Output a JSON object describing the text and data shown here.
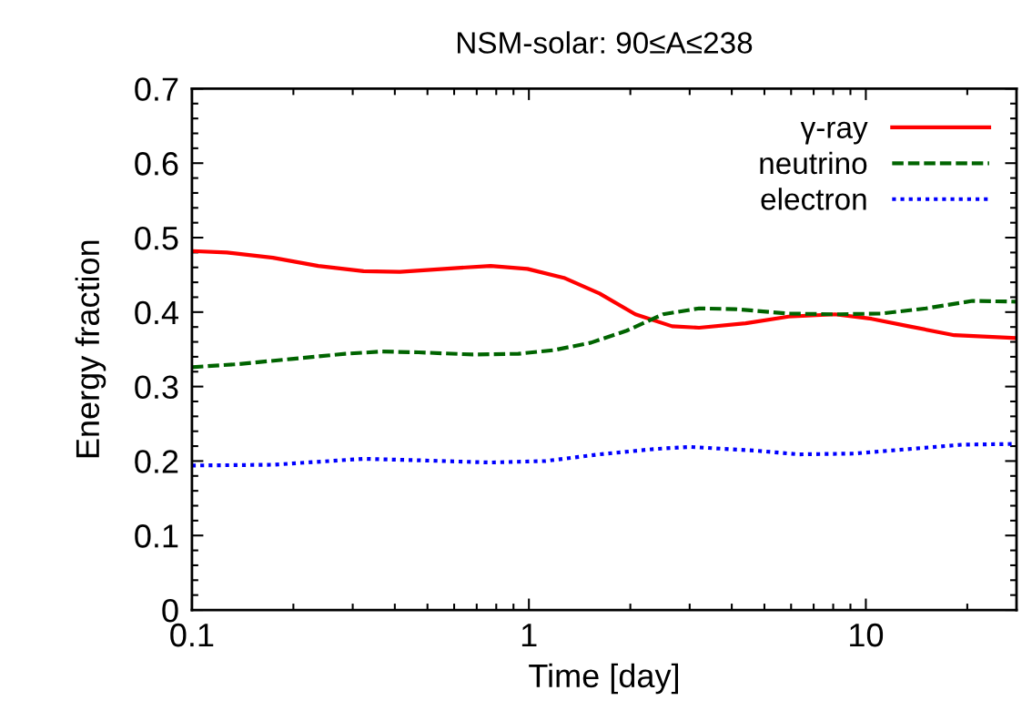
{
  "chart_data": {
    "type": "line",
    "title": "NSM-solar: 90≤A≤238",
    "xlabel": "Time [day]",
    "ylabel": "Energy fraction",
    "log": "x",
    "xlim": [
      0.1,
      28
    ],
    "xticks": [
      0.1,
      1,
      10
    ],
    "ylim": [
      0,
      0.7
    ],
    "yticks": [
      0,
      0.1,
      0.2,
      0.3,
      0.4,
      0.5,
      0.6,
      0.7
    ],
    "grid": false,
    "legend": "top right",
    "marker": "none",
    "series": [
      {
        "name": "γ-ray",
        "color": "#ff0000",
        "line_style": "solid",
        "x": [
          0.1,
          0.127,
          0.174,
          0.237,
          0.323,
          0.414,
          0.6,
          0.77,
          0.99,
          1.27,
          1.62,
          2.07,
          2.66,
          3.2,
          4.4,
          5.9,
          8.1,
          10.4,
          13.4,
          18.3,
          28
        ],
        "values": [
          0.482,
          0.48,
          0.473,
          0.462,
          0.455,
          0.454,
          0.459,
          0.462,
          0.458,
          0.446,
          0.425,
          0.397,
          0.381,
          0.379,
          0.385,
          0.394,
          0.397,
          0.391,
          0.381,
          0.369,
          0.365
        ]
      },
      {
        "name": "neutrino",
        "color": "#006400",
        "line_style": "dashed",
        "x": [
          0.1,
          0.136,
          0.197,
          0.285,
          0.366,
          0.47,
          0.68,
          0.93,
          1.19,
          1.53,
          1.95,
          2.5,
          3.2,
          4.1,
          5.9,
          8.1,
          11.1,
          15.1,
          20.7,
          28
        ],
        "values": [
          0.326,
          0.33,
          0.337,
          0.344,
          0.347,
          0.346,
          0.343,
          0.344,
          0.349,
          0.359,
          0.375,
          0.397,
          0.405,
          0.404,
          0.398,
          0.397,
          0.398,
          0.405,
          0.415,
          0.414
        ]
      },
      {
        "name": "electron",
        "color": "#0000ff",
        "line_style": "dotted",
        "x": [
          0.1,
          0.174,
          0.323,
          0.47,
          0.77,
          1.12,
          1.62,
          2.34,
          3.0,
          4.7,
          6.3,
          9.2,
          12.5,
          19.4,
          28
        ],
        "values": [
          0.194,
          0.195,
          0.203,
          0.201,
          0.198,
          0.2,
          0.209,
          0.216,
          0.219,
          0.214,
          0.209,
          0.21,
          0.215,
          0.222,
          0.223
        ]
      }
    ]
  }
}
